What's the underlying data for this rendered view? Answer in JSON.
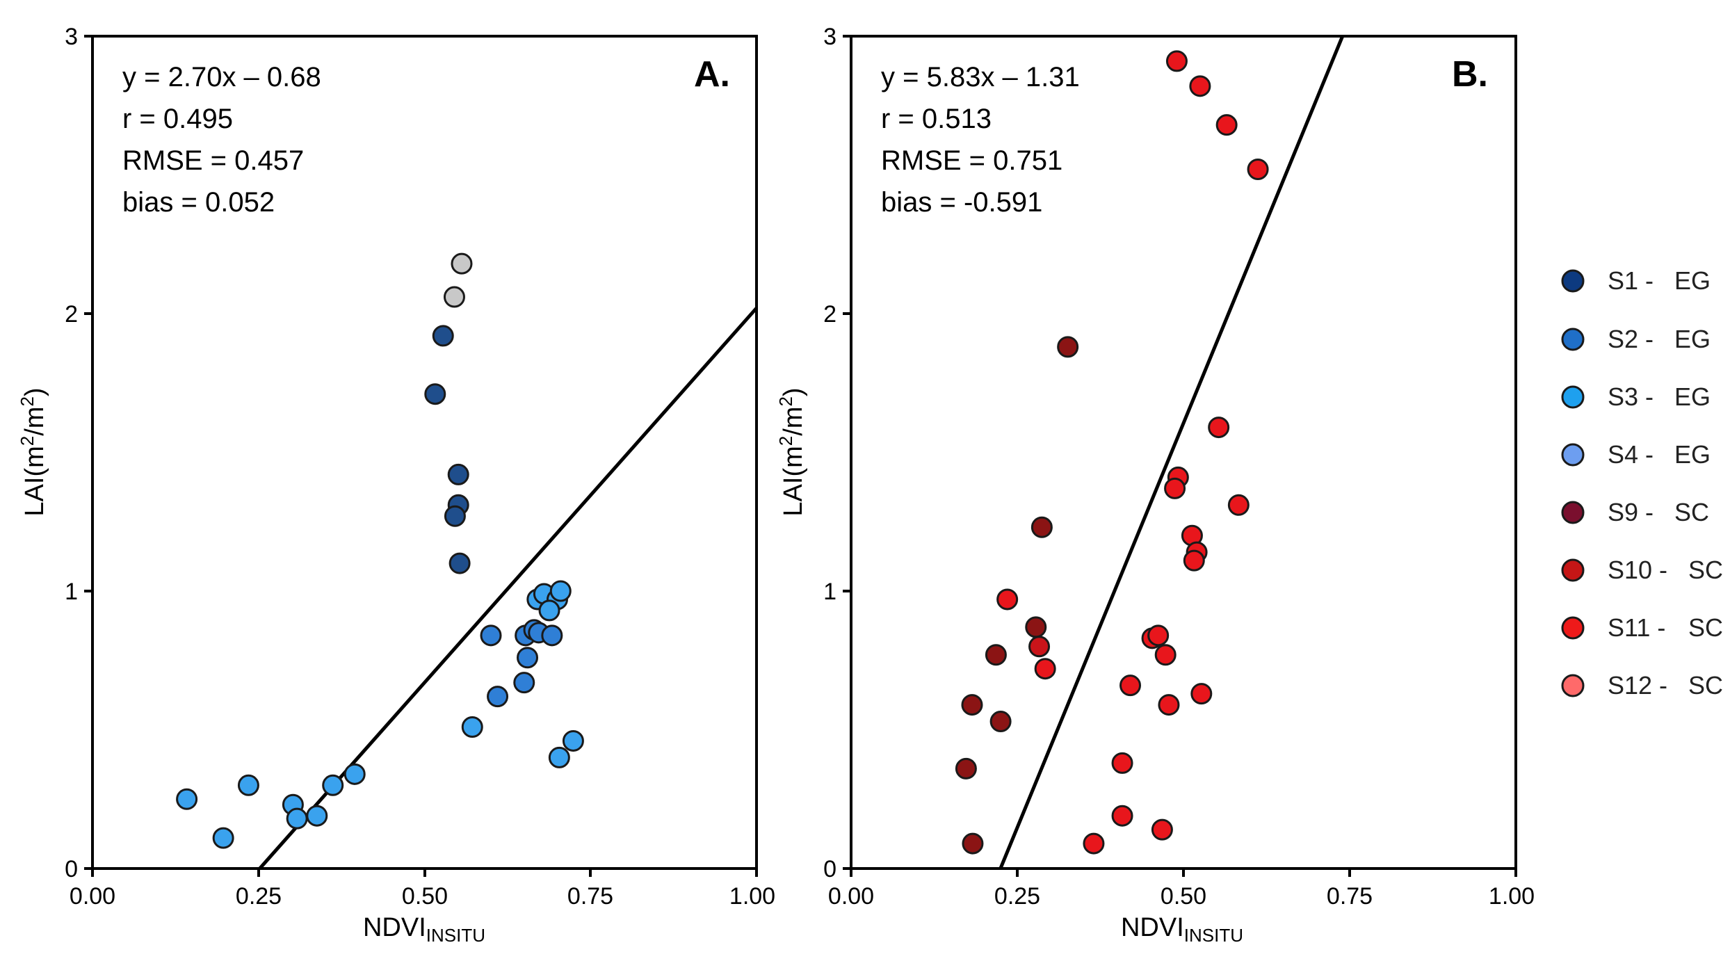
{
  "chart_data": [
    {
      "type": "scatter",
      "panel_label": "A.",
      "xlabel": "NDVI",
      "xlabel_subscript": "INSITU",
      "ylabel": "LAI(m",
      "ylabel_sup1": "2",
      "ylabel_mid": "/m",
      "ylabel_sup2": "2",
      "ylabel_end": ")",
      "xlim": [
        0,
        1
      ],
      "ylim": [
        0,
        3
      ],
      "xticks": [
        "0.00",
        "0.25",
        "0.50",
        "0.75",
        "1.00"
      ],
      "yticks": [
        "0",
        "1",
        "2",
        "3"
      ],
      "stats": [
        "y = 2.70x – 0.68",
        "r = 0.495",
        "RMSE = 0.457",
        "bias = 0.052"
      ],
      "fit_line": {
        "slope": 2.7,
        "intercept": -0.68
      },
      "series": [
        {
          "name": "S1",
          "color": "#1f4e8c",
          "points": [
            [
              0.528,
              1.92
            ],
            [
              0.516,
              1.71
            ],
            [
              0.551,
              1.42
            ],
            [
              0.551,
              1.31
            ],
            [
              0.546,
              1.27
            ],
            [
              0.553,
              1.1
            ]
          ]
        },
        {
          "name": "S2",
          "color": "#2f7fd6",
          "points": [
            [
              0.6,
              0.84
            ],
            [
              0.652,
              0.84
            ],
            [
              0.665,
              0.86
            ],
            [
              0.672,
              0.85
            ],
            [
              0.655,
              0.76
            ],
            [
              0.692,
              0.84
            ],
            [
              0.61,
              0.62
            ],
            [
              0.65,
              0.67
            ]
          ]
        },
        {
          "name": "S3",
          "color": "#3aa2ee",
          "points": [
            [
              0.142,
              0.25
            ],
            [
              0.197,
              0.11
            ],
            [
              0.235,
              0.3
            ],
            [
              0.302,
              0.23
            ],
            [
              0.308,
              0.18
            ],
            [
              0.338,
              0.19
            ],
            [
              0.362,
              0.3
            ],
            [
              0.395,
              0.34
            ],
            [
              0.572,
              0.51
            ],
            [
              0.67,
              0.97
            ],
            [
              0.68,
              0.99
            ],
            [
              0.7,
              0.97
            ],
            [
              0.705,
              1.0
            ],
            [
              0.688,
              0.93
            ],
            [
              0.703,
              0.4
            ],
            [
              0.724,
              0.46
            ]
          ]
        },
        {
          "name": "grey",
          "color": "#c8c8c8",
          "points": [
            [
              0.556,
              2.18
            ],
            [
              0.545,
              2.06
            ]
          ]
        }
      ]
    },
    {
      "type": "scatter",
      "panel_label": "B.",
      "xlabel": "NDVI",
      "xlabel_subscript": "INSITU",
      "ylabel": "LAI(m",
      "ylabel_sup1": "2",
      "ylabel_mid": "/m",
      "ylabel_sup2": "2",
      "ylabel_end": ")",
      "xlim": [
        0,
        1
      ],
      "ylim": [
        0,
        3
      ],
      "xticks": [
        "0.00",
        "0.25",
        "0.50",
        "0.75",
        "1.00"
      ],
      "yticks": [
        "0",
        "1",
        "2",
        "3"
      ],
      "stats": [
        "y = 5.83x – 1.31",
        "r = 0.513",
        "RMSE = 0.751",
        "bias = -0.591"
      ],
      "fit_line": {
        "slope": 5.83,
        "intercept": -1.31
      },
      "series": [
        {
          "name": "S9",
          "color": "#8b1414",
          "points": [
            [
              0.326,
              1.88
            ],
            [
              0.287,
              1.23
            ],
            [
              0.278,
              0.87
            ],
            [
              0.218,
              0.77
            ],
            [
              0.182,
              0.59
            ],
            [
              0.225,
              0.53
            ],
            [
              0.173,
              0.36
            ],
            [
              0.183,
              0.09
            ]
          ]
        },
        {
          "name": "S10",
          "color": "#c9141a",
          "points": [
            [
              0.283,
              0.8
            ]
          ]
        },
        {
          "name": "S11",
          "color": "#e8161c",
          "points": [
            [
              0.49,
              2.91
            ],
            [
              0.525,
              2.82
            ],
            [
              0.565,
              2.68
            ],
            [
              0.612,
              2.52
            ],
            [
              0.553,
              1.59
            ],
            [
              0.492,
              1.41
            ],
            [
              0.487,
              1.37
            ],
            [
              0.583,
              1.31
            ],
            [
              0.513,
              1.2
            ],
            [
              0.52,
              1.14
            ],
            [
              0.516,
              1.11
            ],
            [
              0.235,
              0.97
            ],
            [
              0.292,
              0.72
            ],
            [
              0.453,
              0.83
            ],
            [
              0.462,
              0.84
            ],
            [
              0.473,
              0.77
            ],
            [
              0.42,
              0.66
            ],
            [
              0.478,
              0.59
            ],
            [
              0.527,
              0.63
            ],
            [
              0.408,
              0.38
            ],
            [
              0.408,
              0.19
            ],
            [
              0.468,
              0.14
            ],
            [
              0.365,
              0.09
            ]
          ]
        }
      ]
    }
  ],
  "legend": [
    {
      "id": "S1 -",
      "class": "EG",
      "color": "#0d3a80"
    },
    {
      "id": "S2 -",
      "class": "EG",
      "color": "#1f6fc8"
    },
    {
      "id": "S3 -",
      "class": "EG",
      "color": "#1ea0ee"
    },
    {
      "id": "S4 -",
      "class": "EG",
      "color": "#6d9ef0"
    },
    {
      "id": "S9 -",
      "class": "SC",
      "color": "#7a0f2e"
    },
    {
      "id": "S10 -",
      "class": "SC",
      "color": "#c51616"
    },
    {
      "id": "S11 -",
      "class": "SC",
      "color": "#ee1a1a"
    },
    {
      "id": "S12 -",
      "class": "SC",
      "color": "#ff6a6a"
    }
  ]
}
